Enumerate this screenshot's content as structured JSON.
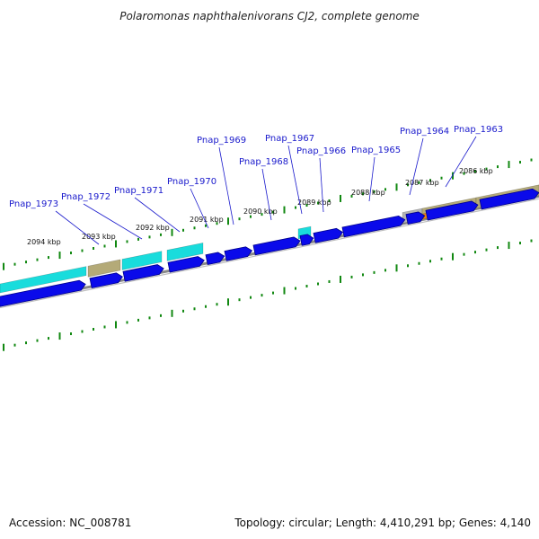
{
  "title": "Polaromonas naphthalenivorans CJ2, complete genome",
  "footer": {
    "accession": "Accession: NC_008781",
    "summary": "Topology: circular; Length: 4,410,291 bp; Genes: 4,140"
  },
  "colors": {
    "cds": "#0a0aea",
    "cds_edge": "#00008b",
    "cyan_feature": "#19dcdc",
    "khaki_feature": "#b4aa78",
    "orange_feature": "#f0820f",
    "gray_feature": "#b4b4b4",
    "backbone": "#888888",
    "ticks": "#118811",
    "labels": "#1a1acc"
  },
  "scale": {
    "unit": "kbp",
    "labels": [
      "2094 kbp",
      "2093 kbp",
      "2092 kbp",
      "2091 kbp",
      "2090 kbp",
      "2089 kbp",
      "2088 kbp",
      "2087 kbp",
      "2086 kbp"
    ],
    "positions_kbp": [
      2094,
      2093,
      2092,
      2091,
      2090,
      2089,
      2088,
      2087,
      2086
    ]
  },
  "genes": [
    {
      "name": "Pnap_1973"
    },
    {
      "name": "Pnap_1972"
    },
    {
      "name": "Pnap_1971"
    },
    {
      "name": "Pnap_1970"
    },
    {
      "name": "Pnap_1969"
    },
    {
      "name": "Pnap_1968"
    },
    {
      "name": "Pnap_1967"
    },
    {
      "name": "Pnap_1966"
    },
    {
      "name": "Pnap_1965"
    },
    {
      "name": "Pnap_1964"
    },
    {
      "name": "Pnap_1963"
    }
  ]
}
